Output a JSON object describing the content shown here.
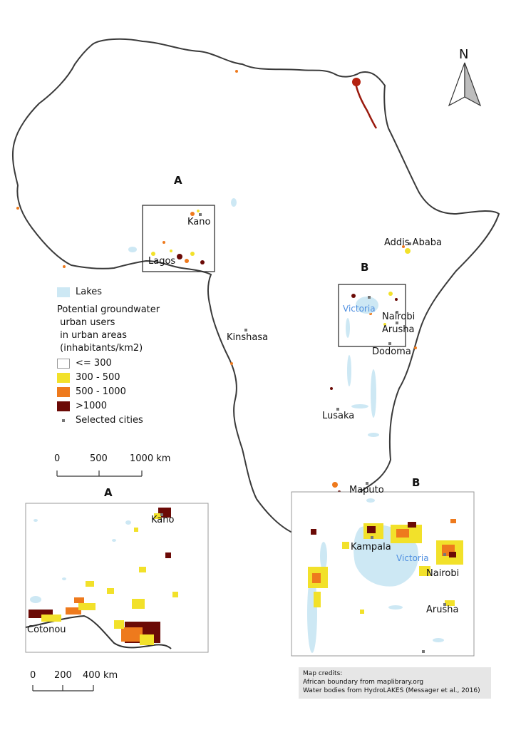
{
  "north_arrow": {
    "label": "N"
  },
  "inset_labels": {
    "a_main": "A",
    "b_main": "B",
    "a_inset": "A",
    "b_inset": "B"
  },
  "cities": {
    "kano": "Kano",
    "lagos": "Lagos",
    "addis": "Addis Ababa",
    "victoria": "Victoria",
    "nairobi": "Nairobi",
    "arusha": "Arusha",
    "dodoma": "Dodoma",
    "kinshasa": "Kinshasa",
    "lusaka": "Lusaka",
    "maputo": "Maputo"
  },
  "legend": {
    "lakes": "Lakes",
    "title_lines": [
      "Potential groundwater",
      " urban users",
      " in urban areas",
      " (inhabitants/km2)"
    ],
    "classes": [
      {
        "label": "<= 300",
        "color": "#ffffff"
      },
      {
        "label": "300 - 500",
        "color": "#f2e12a"
      },
      {
        "label": "500 - 1000",
        "color": "#ee7a1d"
      },
      {
        "label": ">1000",
        "color": "#6b0a06"
      }
    ],
    "cities": "Selected cities",
    "lake_color": "#cde8f4"
  },
  "scale_main": {
    "ticks": [
      "0",
      "500",
      "1000 km"
    ]
  },
  "inset_a": {
    "kano": "Kano",
    "cotonou": "Cotonou"
  },
  "scale_inset": {
    "ticks": [
      "0",
      "200",
      "400 km"
    ]
  },
  "inset_b": {
    "kampala": "Kampala",
    "victoria": "Victoria",
    "nairobi": "Nairobi",
    "arusha": "Arusha"
  },
  "credits": {
    "line1": "Map credits:",
    "line2": "African boundary from maplibrary.org",
    "line3": "Water bodies from HydroLAKES (Messager et al., 2016)"
  }
}
